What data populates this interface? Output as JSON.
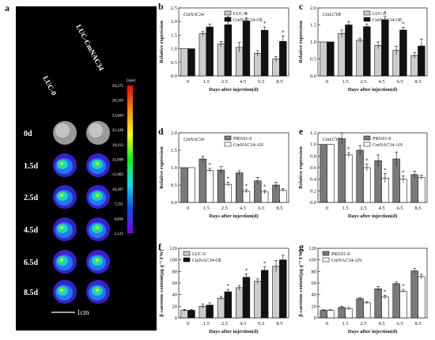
{
  "panel_a": {
    "label": "a",
    "column_labels": [
      "LUC-0",
      "LUC-CmNAC34"
    ],
    "row_labels": [
      "0d",
      "1.5d",
      "2.5d",
      "4.5d",
      "6.5d",
      "8.5d"
    ],
    "scale_unit": "[cps]",
    "scale_values": [
      "29,275",
      "26,559",
      "23,844",
      "21,128",
      "18,413",
      "15,698",
      "12,982",
      "10,267",
      "7,551",
      "4,836",
      "2,121"
    ],
    "scale_bar": "1cm",
    "colormap": [
      "#ff0000",
      "#ff8c00",
      "#ffff00",
      "#00ff00",
      "#00e5ff",
      "#0050ff",
      "#7a00ff"
    ]
  },
  "chart_data": [
    {
      "type": "bar",
      "id": "b",
      "panel_label": "b",
      "gene": "CmNAC34",
      "categories": [
        "0",
        "1.5",
        "2.5",
        "4.5",
        "6.5",
        "8.5"
      ],
      "xlabel": "Days after injection(d)",
      "ylabel": "Relative expression",
      "ylim": [
        0,
        2.5
      ],
      "yticks": [
        "0.0",
        "0.5",
        "1.0",
        "1.5",
        "2.0",
        "2.5"
      ],
      "legend_position": "top-right",
      "series": [
        {
          "name": "LUC-0",
          "color": "#cccccc",
          "values": [
            1.0,
            1.55,
            1.17,
            1.05,
            0.83,
            0.62
          ],
          "errors": [
            0.0,
            0.08,
            0.1,
            0.18,
            0.1,
            0.1
          ]
        },
        {
          "name": "CmNAC34-OE",
          "color": "#111111",
          "values": [
            1.0,
            1.8,
            1.88,
            2.02,
            1.68,
            1.27
          ],
          "errors": [
            0.0,
            0.1,
            0.12,
            0.12,
            0.12,
            0.2
          ]
        }
      ],
      "significance": [
        "",
        "",
        "*",
        "*",
        "*",
        "*"
      ]
    },
    {
      "type": "bar",
      "id": "c",
      "panel_label": "c",
      "gene": "CmLCYB",
      "categories": [
        "0",
        "1.5",
        "2.5",
        "4.5",
        "6.5",
        "8.5"
      ],
      "xlabel": "Days after injection(d)",
      "ylabel": "Relative expression",
      "ylim": [
        0,
        2.0
      ],
      "yticks": [
        "0.0",
        "0.5",
        "1.0",
        "1.5",
        "2.0"
      ],
      "legend_position": "top-right",
      "series": [
        {
          "name": "LUC-0",
          "color": "#cccccc",
          "values": [
            1.0,
            1.25,
            1.05,
            0.9,
            0.75,
            0.6
          ],
          "errors": [
            0.0,
            0.1,
            0.06,
            0.1,
            0.12,
            0.08
          ]
        },
        {
          "name": "CmNAC34-OE",
          "color": "#111111",
          "values": [
            1.0,
            1.5,
            1.45,
            1.65,
            1.35,
            0.88
          ],
          "errors": [
            0.0,
            0.1,
            0.08,
            0.1,
            0.08,
            0.2
          ]
        }
      ],
      "significance": [
        "",
        "",
        "*",
        "*",
        "*",
        ""
      ]
    },
    {
      "type": "bar",
      "id": "d",
      "panel_label": "d",
      "gene": "CmNAC34",
      "categories": [
        "0",
        "1.5",
        "2.5",
        "4.5",
        "6.5",
        "8.5"
      ],
      "xlabel": "Days after injection(d)",
      "ylabel": "Relative expression",
      "ylim": [
        0,
        2.0
      ],
      "yticks": [
        "0.0",
        "0.5",
        "1.0",
        "1.5",
        "2.0"
      ],
      "legend_position": "top-right",
      "series": [
        {
          "name": "PRI101-0",
          "color": "#7a7a7a",
          "values": [
            1.0,
            1.25,
            0.93,
            0.85,
            0.62,
            0.5
          ],
          "errors": [
            0.0,
            0.08,
            0.1,
            0.06,
            0.1,
            0.08
          ]
        },
        {
          "name": "CmNAC34-AN",
          "color": "#ffffff",
          "values": [
            1.0,
            0.92,
            0.52,
            0.32,
            0.3,
            0.35
          ],
          "errors": [
            0.0,
            0.06,
            0.06,
            0.05,
            0.05,
            0.05
          ]
        }
      ],
      "significance": [
        "",
        "*",
        "*",
        "*",
        "*",
        ""
      ]
    },
    {
      "type": "bar",
      "id": "e",
      "panel_label": "e",
      "gene": "CmLCYB",
      "categories": [
        "0",
        "1.5",
        "2.5",
        "4.5",
        "6.5",
        "8.5"
      ],
      "xlabel": "Days after injection(d)",
      "ylabel": "Relative expression",
      "ylim": [
        0,
        1.2
      ],
      "yticks": [
        "0.0",
        "0.2",
        "0.4",
        "0.6",
        "0.8",
        "1.0",
        "1.2"
      ],
      "legend_position": "top-right",
      "series": [
        {
          "name": "PRI101-0",
          "color": "#7a7a7a",
          "values": [
            1.0,
            1.1,
            0.9,
            0.72,
            0.75,
            0.48
          ],
          "errors": [
            0.0,
            0.1,
            0.08,
            0.1,
            0.12,
            0.06
          ]
        },
        {
          "name": "CmNAC34-AN",
          "color": "#ffffff",
          "values": [
            1.0,
            0.82,
            0.6,
            0.42,
            0.4,
            0.43
          ],
          "errors": [
            0.0,
            0.04,
            0.06,
            0.08,
            0.06,
            0.04
          ]
        }
      ],
      "significance": [
        "",
        "*",
        "*",
        "*",
        "*",
        ""
      ]
    },
    {
      "type": "bar",
      "id": "f",
      "panel_label": "f",
      "categories": [
        "0",
        "1.5",
        "2.5",
        "4.5",
        "6.5",
        "8.5"
      ],
      "xlabel": "Days after injection(d)",
      "ylabel": "β-carotene content(μg g⁻¹ FW)",
      "ylim": [
        0,
        120
      ],
      "yticks": [
        "0",
        "20",
        "40",
        "60",
        "80",
        "100",
        "120"
      ],
      "legend_position": "top-left",
      "series": [
        {
          "name": "LUC-0",
          "color": "#cccccc",
          "values": [
            13,
            20,
            34,
            52,
            63,
            89
          ],
          "errors": [
            1.5,
            4,
            3,
            4,
            4,
            10
          ]
        },
        {
          "name": "CmNAC34-OE",
          "color": "#111111",
          "values": [
            13,
            22,
            45,
            70,
            82,
            100
          ],
          "errors": [
            1.5,
            4,
            4,
            6,
            6,
            8
          ]
        }
      ],
      "significance": [
        "",
        "",
        "*",
        "*",
        "*",
        ""
      ]
    },
    {
      "type": "bar",
      "id": "g",
      "panel_label": "g",
      "categories": [
        "0",
        "1.5",
        "2.5",
        "4.5",
        "6.5",
        "8.5"
      ],
      "xlabel": "Days after injection(d)",
      "ylabel": "β-carotene content(μg g⁻¹ FW)",
      "ylim": [
        0,
        120
      ],
      "yticks": [
        "0",
        "20",
        "40",
        "60",
        "80",
        "100",
        "120"
      ],
      "legend_position": "top-left",
      "series": [
        {
          "name": "PRI101-0",
          "color": "#7a7a7a",
          "values": [
            13,
            18,
            33,
            50,
            59,
            81
          ],
          "errors": [
            1,
            2,
            2,
            4,
            3,
            4
          ]
        },
        {
          "name": "CmNAC34-AN",
          "color": "#ffffff",
          "values": [
            13,
            16,
            26,
            36,
            46,
            71
          ],
          "errors": [
            1,
            2,
            2,
            3,
            3,
            4
          ]
        }
      ],
      "significance": [
        "",
        "",
        "",
        "*",
        "*",
        ""
      ]
    }
  ]
}
